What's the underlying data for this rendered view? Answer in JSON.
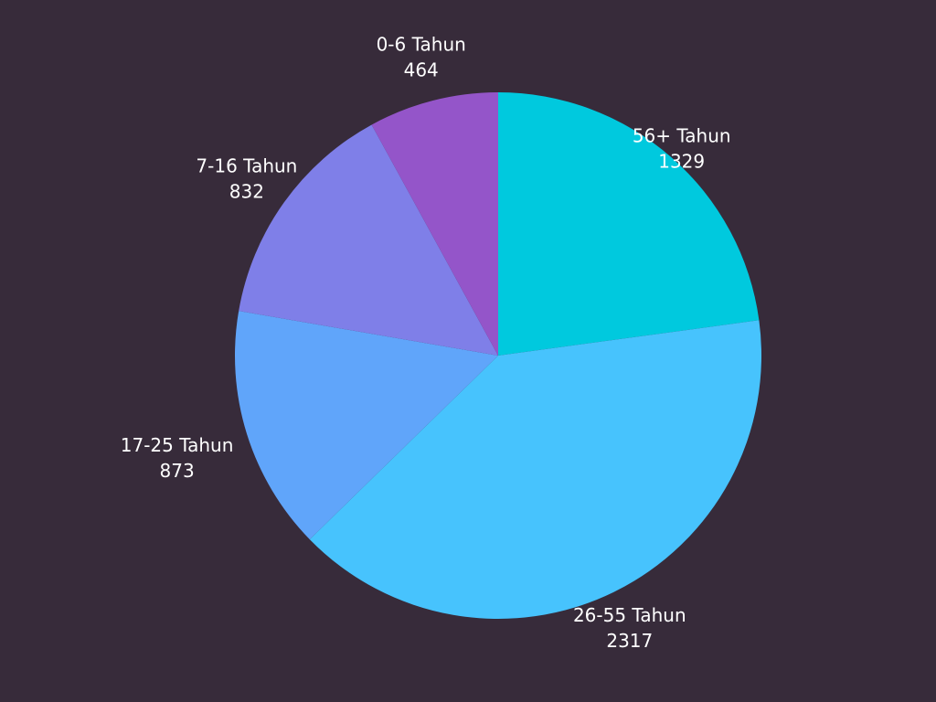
{
  "chart_data": {
    "type": "pie",
    "categories": [
      "56+ Tahun",
      "26-55 Tahun",
      "17-25 Tahun",
      "7-16 Tahun",
      "0-6 Tahun"
    ],
    "values": [
      1329,
      2317,
      873,
      832,
      464
    ],
    "colors": [
      "#00c9de",
      "#47c3fd",
      "#60a5fa",
      "#7f7fe8",
      "#9455c9"
    ],
    "start": "12 o'clock",
    "direction": "clockwise",
    "legend": "none (labels beside slices)"
  }
}
